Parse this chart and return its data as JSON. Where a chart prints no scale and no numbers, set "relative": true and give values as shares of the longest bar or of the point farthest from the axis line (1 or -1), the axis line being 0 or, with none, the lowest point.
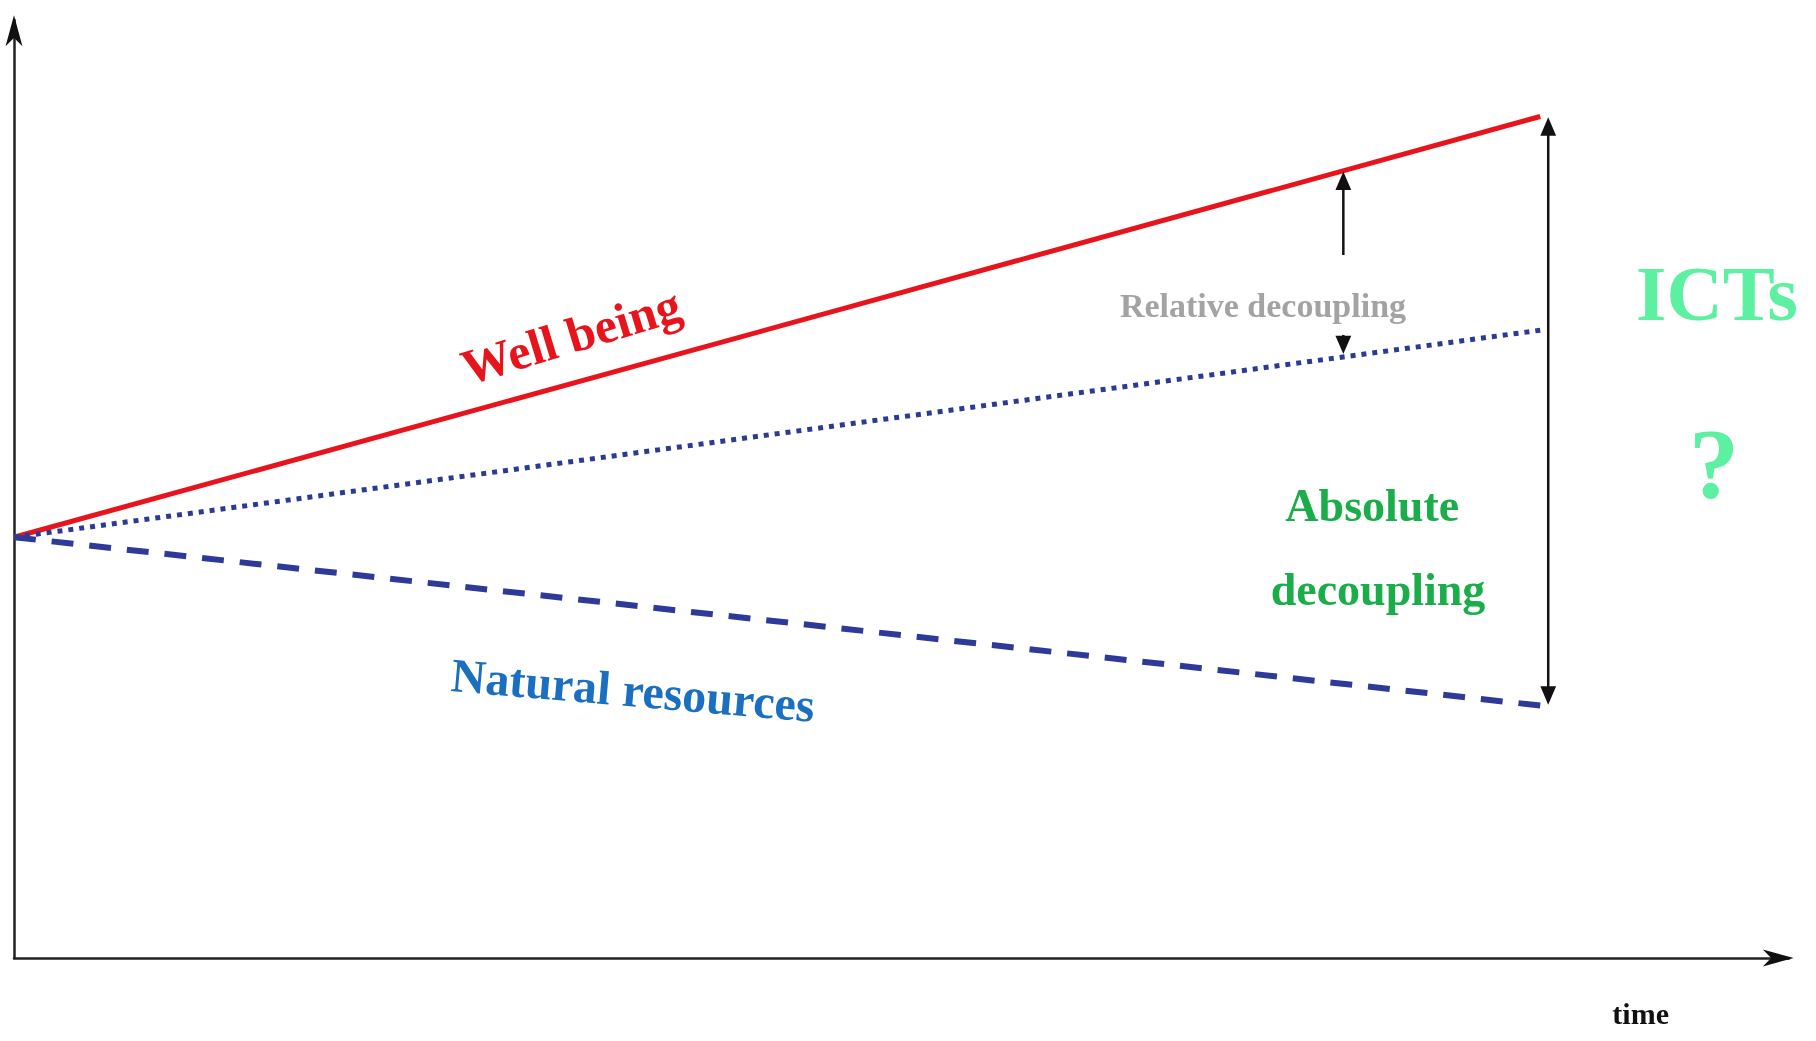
{
  "chart_data": {
    "type": "line",
    "relative": true,
    "categories": [
      null,
      null
    ],
    "xlabel": "time",
    "legend": false,
    "grid": false,
    "marker": "none",
    "series": [
      {
        "name": "Well being",
        "color": "#e8141c",
        "line_style": "solid",
        "values": [
          0.5,
          1
        ]
      },
      {
        "color": "#2b3a94",
        "line_style": "dotted",
        "values": [
          0.5,
          0.746
        ]
      },
      {
        "name": "Natural resources",
        "color": "#2e3a9a",
        "line_style": "dashed",
        "values": [
          0.5,
          0.3
        ]
      }
    ],
    "annotations": [
      "Relative decoupling",
      "Absolute decoupling",
      "ICTs",
      "?"
    ]
  }
}
